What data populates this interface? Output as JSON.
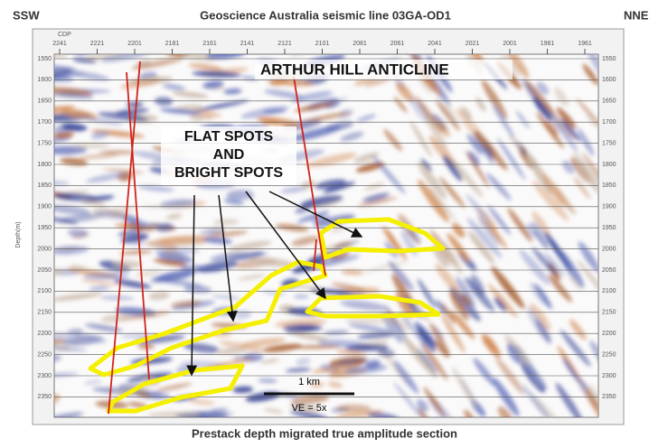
{
  "header": {
    "left": "SSW",
    "title": "Geoscience Australia seismic line 03GA-OD1",
    "right": "NNE"
  },
  "section": {
    "cdp_label": "CDP",
    "cdp_ticks": [
      "2241",
      "2221",
      "2201",
      "2181",
      "2161",
      "2141",
      "2121",
      "2101",
      "2081",
      "2061",
      "2041",
      "2021",
      "2001",
      "1981",
      "1961"
    ],
    "depth_label": "Depth(m)",
    "depth_ticks": [
      "1550",
      "1600",
      "1650",
      "1700",
      "1750",
      "1800",
      "1850",
      "1900",
      "1950",
      "2000",
      "2050",
      "2100",
      "2150",
      "2200",
      "2250",
      "2300",
      "2350"
    ]
  },
  "annotations": {
    "anticline": "ARTHUR HILL ANTICLINE",
    "spots": [
      "FLAT SPOTS",
      "AND",
      "BRIGHT SPOTS"
    ]
  },
  "scale": {
    "length": "1 km",
    "exaggeration": "VE = 5x"
  },
  "caption": "Prestack depth migrated true amplitude section"
}
